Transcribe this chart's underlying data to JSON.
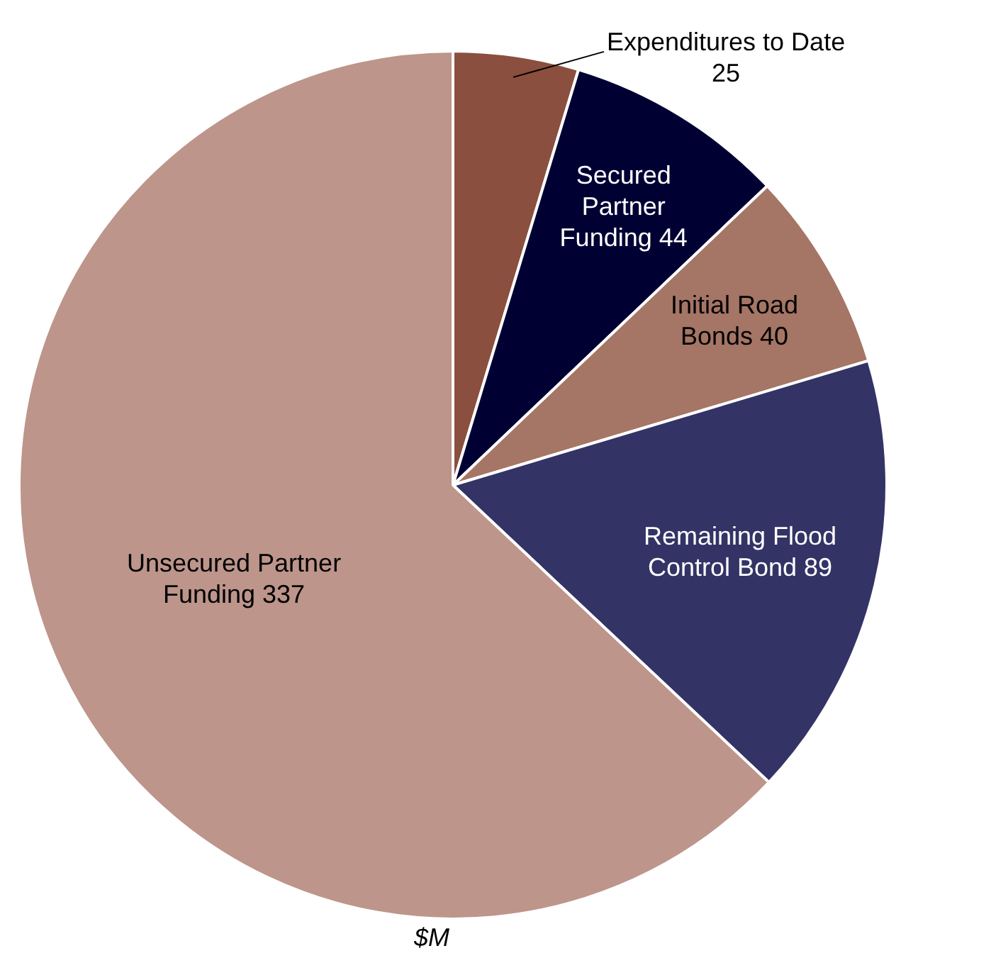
{
  "chart_data": {
    "type": "pie",
    "categories": [
      "Expenditures to Date",
      "Secured Partner Funding",
      "Initial Road Bonds",
      "Remaining Flood Control Bond",
      "Unsecured Partner Funding"
    ],
    "values": [
      25,
      44,
      40,
      89,
      337
    ],
    "colors": [
      "#8b4f3f",
      "#000033",
      "#a57566",
      "#333366",
      "#bd958b"
    ],
    "data_labels": true,
    "legend": false,
    "annotations": [
      "$M"
    ]
  }
}
